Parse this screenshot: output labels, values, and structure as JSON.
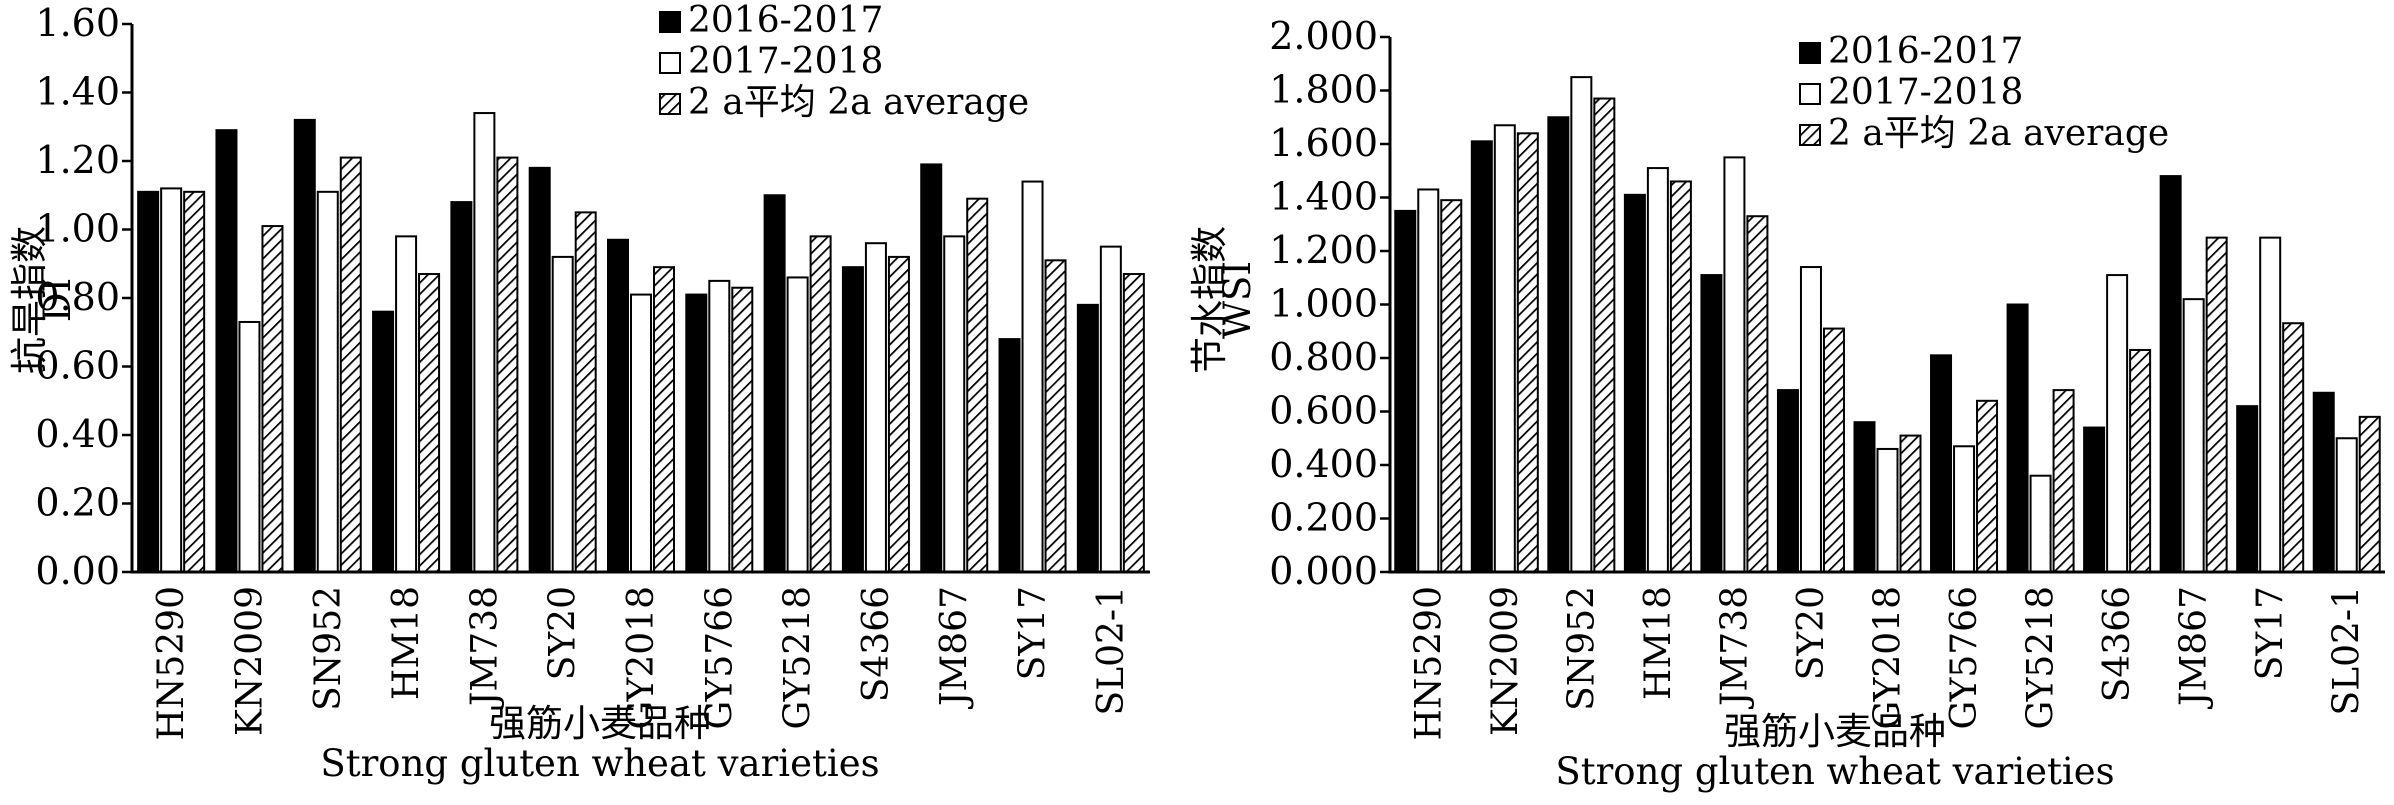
{
  "chart_data": [
    {
      "type": "bar",
      "ylabel": "抗旱指数",
      "ylabel_en": "DI",
      "xlabel": "强筋小麦品种",
      "xlabel_en": "Strong gluten wheat varieties",
      "ylim": [
        0,
        1.6
      ],
      "yticks": [
        "0.00",
        "0.20",
        "0.40",
        "0.60",
        "0.80",
        "1.00",
        "1.20",
        "1.40",
        "1.60"
      ],
      "categories": [
        "HN5290",
        "KN2009",
        "SN952",
        "HM18",
        "JM738",
        "SY20",
        "GY2018",
        "GY5766",
        "GY5218",
        "S4366",
        "JM867",
        "SY17",
        "SL02-1"
      ],
      "series": [
        {
          "name": "2016-2017",
          "values": [
            1.11,
            1.29,
            1.32,
            0.76,
            1.08,
            1.18,
            0.97,
            0.81,
            1.1,
            0.89,
            1.19,
            0.68,
            0.78
          ]
        },
        {
          "name": "2017-2018",
          "values": [
            1.12,
            0.73,
            1.11,
            0.98,
            1.34,
            0.92,
            0.81,
            0.85,
            0.86,
            0.96,
            0.98,
            1.14,
            0.95
          ]
        },
        {
          "name": "2 a平均 2a average",
          "values": [
            1.11,
            1.01,
            1.21,
            0.87,
            1.21,
            1.05,
            0.89,
            0.83,
            0.98,
            0.92,
            1.09,
            0.91,
            0.87
          ]
        }
      ],
      "legend": [
        "2016-2017",
        "2017-2018",
        "2 a平均 2a average"
      ]
    },
    {
      "type": "bar",
      "ylabel": "节水指数",
      "ylabel_en": "WSI",
      "xlabel": "强筋小麦品种",
      "xlabel_en": "Strong gluten wheat varieties",
      "ylim": [
        0,
        2.0
      ],
      "yticks": [
        "0.000",
        "0.200",
        "0.400",
        "0.600",
        "0.800",
        "1.000",
        "1.200",
        "1.400",
        "1.600",
        "1.800",
        "2.000"
      ],
      "categories": [
        "HN5290",
        "KN2009",
        "SN952",
        "HM18",
        "JM738",
        "SY20",
        "GY2018",
        "GY5766",
        "GY5218",
        "S4366",
        "JM867",
        "SY17",
        "SL02-1"
      ],
      "series": [
        {
          "name": "2016-2017",
          "values": [
            1.35,
            1.61,
            1.7,
            1.41,
            1.11,
            0.68,
            0.56,
            0.81,
            1.0,
            0.54,
            1.48,
            0.62,
            0.67
          ]
        },
        {
          "name": "2017-2018",
          "values": [
            1.43,
            1.67,
            1.85,
            1.51,
            1.55,
            1.14,
            0.46,
            0.47,
            0.36,
            1.11,
            1.02,
            1.25,
            0.5
          ]
        },
        {
          "name": "2 a平均 2a average",
          "values": [
            1.39,
            1.64,
            1.77,
            1.46,
            1.33,
            0.91,
            0.51,
            0.64,
            0.68,
            0.83,
            1.25,
            0.93,
            0.58
          ]
        }
      ],
      "legend": [
        "2016-2017",
        "2017-2018",
        "2 a平均 2a average"
      ]
    }
  ]
}
